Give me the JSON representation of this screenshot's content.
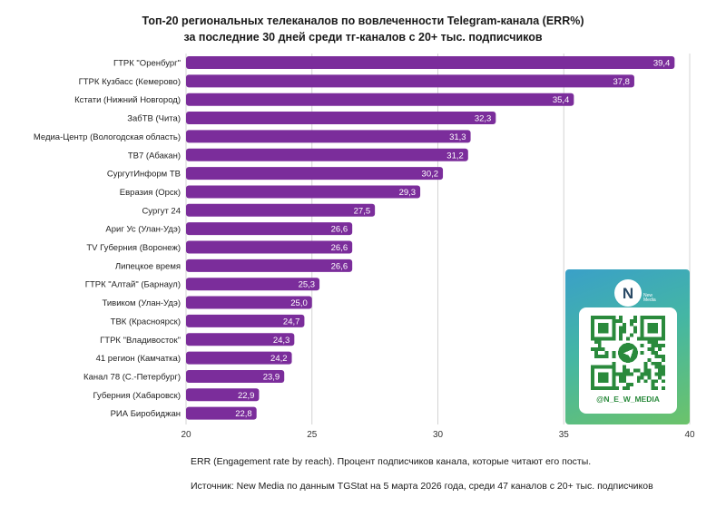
{
  "chart_data": {
    "type": "bar",
    "orientation": "horizontal",
    "title_line1": "Топ-20 региональных телеканалов по вовлеченности Telegram-канала (ERR%)",
    "title_line2": "за последние 30 дней среди тг-каналов с 20+ тыс. подписчиков",
    "categories": [
      "ГТРК \"Оренбург\"",
      "ГТРК Кузбасс (Кемерово)",
      "Кстати (Нижний Новгород)",
      "ЗабТВ (Чита)",
      "Медиа-Центр (Вологодская область)",
      "ТВ7 (Абакан)",
      "СургутИнформ ТВ",
      "Евразия (Орск)",
      "Сургут 24",
      "Ариг Ус (Улан-Удэ)",
      "TV Губерния (Воронеж)",
      "Липецкое время",
      "ГТРК \"Алтай\" (Барнаул)",
      "Тивиком (Улан-Удэ)",
      "ТВК (Красноярск)",
      "ГТРК \"Владивосток\"",
      "41 регион (Камчатка)",
      "Канал 78 (С.-Петербург)",
      "Губерния (Хабаровск)",
      "РИА Биробиджан"
    ],
    "values": [
      39.4,
      37.8,
      35.4,
      32.3,
      31.3,
      31.2,
      30.2,
      29.3,
      27.5,
      26.6,
      26.6,
      26.6,
      25.3,
      25.0,
      24.7,
      24.3,
      24.2,
      23.9,
      22.9,
      22.8
    ],
    "value_labels": [
      "39,4",
      "37,8",
      "35,4",
      "32,3",
      "31,3",
      "31,2",
      "30,2",
      "29,3",
      "27,5",
      "26,6",
      "26,6",
      "26,6",
      "25,3",
      "25,0",
      "24,7",
      "24,3",
      "24,2",
      "23,9",
      "22,9",
      "22,8"
    ],
    "xlim": [
      20,
      40
    ],
    "xticks": [
      20,
      25,
      30,
      35,
      40
    ],
    "grid": true,
    "bar_color": "#7b2d9b"
  },
  "footnote": "ERR (Engagement rate by reach). Процент подписчиков канала, которые читают его посты.",
  "source": "Источник: New Media по данным TGStat на 5 марта 2026 года, среди 47 каналов с 20+ тыс. подписчиков",
  "promo": {
    "logo_letter": "N",
    "logo_caption_1": "New",
    "logo_caption_2": "Media",
    "handle": "@N_E_W_MEDIA",
    "qr_icon": "qr-code-icon",
    "telegram_icon": "telegram-icon"
  }
}
